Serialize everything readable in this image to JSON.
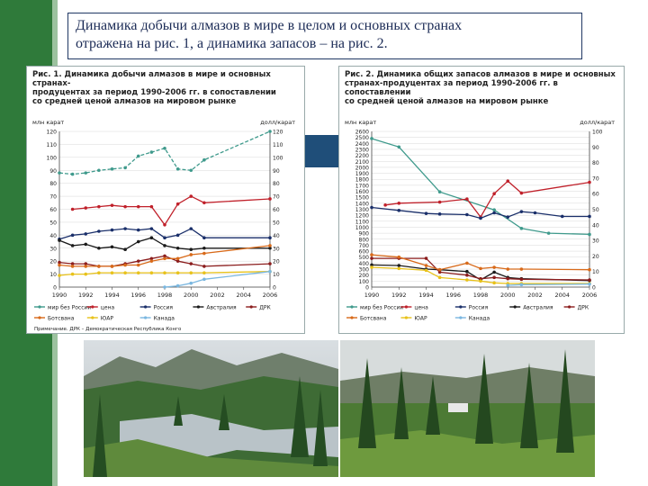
{
  "caption": {
    "line1": "Динамика добычи алмазов в мире в целом и основных странах",
    "line2": "отражена на рис. 1, а динамика запасов – на рис. 2."
  },
  "colors": {
    "green_bar": "#2f7a3a",
    "blue_block": "#1f4e79",
    "caption_border": "#203864"
  },
  "chart_data": [
    {
      "type": "line",
      "title": "Рис. 1. Динамика добычи алмазов в мире и основных странах-\nпродуцентах за период 1990-2006 гг. в сопоставлении\nсо средней ценой алмазов на мировом рынке",
      "ylabel_left": "млн карат",
      "ylabel_right": "долл/карат",
      "x": [
        1990,
        1991,
        1992,
        1993,
        1994,
        1995,
        1996,
        1997,
        1998,
        1999,
        2000,
        2001,
        2002,
        2003,
        2004,
        2005,
        2006
      ],
      "x_ticks": [
        "1990",
        "1992",
        "1994",
        "1996",
        "1998",
        "2000",
        "2002",
        "2004",
        "2006"
      ],
      "yleft_ticks": [
        "0",
        "10",
        "20",
        "30",
        "40",
        "50",
        "60",
        "70",
        "80",
        "90",
        "100",
        "110",
        "120"
      ],
      "yright_ticks": [
        "0",
        "10",
        "20",
        "30",
        "40",
        "50",
        "60",
        "70",
        "80",
        "90",
        "100",
        "110",
        "120"
      ],
      "ylim": [
        0,
        120
      ],
      "series": [
        {
          "name": "мир без России",
          "color": "#3f9a8c",
          "dash": "4,2",
          "values": [
            88,
            87,
            88,
            90,
            91,
            92,
            101,
            104,
            107,
            91,
            90,
            98,
            null,
            null,
            null,
            null,
            120
          ]
        },
        {
          "name": "цена",
          "color": "#c0202a",
          "values": [
            null,
            60,
            61,
            62,
            63,
            62,
            62,
            62,
            48,
            64,
            70,
            65,
            null,
            null,
            null,
            null,
            68
          ]
        },
        {
          "name": "Россия",
          "color": "#1a2f6a",
          "values": [
            37,
            40,
            41,
            43,
            44,
            45,
            44,
            45,
            38,
            40,
            45,
            38,
            null,
            null,
            null,
            null,
            38
          ]
        },
        {
          "name": "Австралия",
          "color": "#1a1a1a",
          "values": [
            36,
            32,
            33,
            30,
            31,
            29,
            35,
            38,
            32,
            30,
            29,
            30,
            null,
            null,
            null,
            null,
            30
          ]
        },
        {
          "name": "ДРК",
          "color": "#8b1d1d",
          "values": [
            19,
            18,
            18,
            16,
            16,
            18,
            20,
            22,
            24,
            20,
            18,
            16,
            null,
            null,
            null,
            null,
            18
          ]
        },
        {
          "name": "Ботсвана",
          "color": "#d86a1a",
          "values": [
            17,
            16,
            16,
            16,
            16,
            17,
            17,
            20,
            22,
            22,
            25,
            26,
            null,
            null,
            null,
            null,
            32
          ]
        },
        {
          "name": "ЮАР",
          "color": "#e8c21a",
          "values": [
            9,
            10,
            10,
            11,
            11,
            11,
            11,
            11,
            11,
            11,
            11,
            11,
            null,
            null,
            null,
            null,
            12
          ]
        },
        {
          "name": "Канада",
          "color": "#7ab7e0",
          "values": [
            null,
            null,
            null,
            null,
            null,
            null,
            null,
            null,
            0,
            1,
            3,
            6,
            null,
            null,
            null,
            null,
            12
          ]
        }
      ],
      "legend": [
        "мир без России",
        "цена",
        "Россия",
        "Австралия",
        "ДРК",
        "Ботсвана",
        "ЮАР",
        "Канада"
      ],
      "note": "Примечание. ДРК – Демократическая Республика Конго"
    },
    {
      "type": "line",
      "title": "Рис. 2. Динамика общих запасов алмазов в мире и основных\nстранах-продуцентах за период 1990-2006 гг. в сопоставлении\nсо средней ценой алмазов на мировом рынке",
      "ylabel_left": "млн карат",
      "ylabel_right": "долл/карат",
      "x": [
        1990,
        1991,
        1992,
        1993,
        1994,
        1995,
        1996,
        1997,
        1998,
        1999,
        2000,
        2001,
        2002,
        2003,
        2004,
        2005,
        2006
      ],
      "x_ticks": [
        "1990",
        "1992",
        "1994",
        "1996",
        "1998",
        "2000",
        "2002",
        "2004",
        "2006"
      ],
      "yleft_ticks": [
        "0",
        "100",
        "200",
        "300",
        "400",
        "500",
        "600",
        "700",
        "800",
        "900",
        "1000",
        "1100",
        "1200",
        "1300",
        "1400",
        "1500",
        "1600",
        "1700",
        "1800",
        "1900",
        "2000",
        "2100",
        "2200",
        "2300",
        "2400",
        "2500",
        "2600"
      ],
      "yright_ticks": [
        "0",
        "10",
        "20",
        "30",
        "40",
        "50",
        "60",
        "70",
        "80",
        "90",
        "100"
      ],
      "ylim": [
        0,
        2600
      ],
      "series": [
        {
          "name": "мир без России",
          "color": "#3f9a8c",
          "values": [
            2480,
            null,
            2340,
            null,
            null,
            1590,
            null,
            null,
            null,
            1290,
            null,
            980,
            null,
            900,
            null,
            null,
            880
          ]
        },
        {
          "name": "цена",
          "color": "#c0202a",
          "values": [
            null,
            1370,
            1400,
            null,
            null,
            1420,
            null,
            1470,
            1170,
            1560,
            1770,
            1570,
            null,
            null,
            null,
            null,
            1750
          ]
        },
        {
          "name": "Россия",
          "color": "#1a2f6a",
          "values": [
            1330,
            null,
            1280,
            null,
            1230,
            1220,
            null,
            1210,
            1150,
            1240,
            1170,
            1260,
            1240,
            null,
            1180,
            null,
            1180
          ]
        },
        {
          "name": "Австралия",
          "color": "#1a1a1a",
          "values": [
            370,
            null,
            360,
            null,
            300,
            290,
            null,
            260,
            120,
            250,
            160,
            140,
            null,
            null,
            null,
            null,
            110
          ]
        },
        {
          "name": "ДРК",
          "color": "#8b1d1d",
          "values": [
            480,
            null,
            480,
            null,
            480,
            250,
            null,
            200,
            140,
            160,
            140,
            130,
            null,
            null,
            null,
            null,
            120
          ]
        },
        {
          "name": "Ботсвана",
          "color": "#d86a1a",
          "values": [
            540,
            null,
            500,
            null,
            360,
            290,
            null,
            400,
            310,
            330,
            300,
            300,
            null,
            null,
            null,
            null,
            290
          ]
        },
        {
          "name": "ЮАР",
          "color": "#e8c21a",
          "values": [
            330,
            null,
            310,
            null,
            280,
            160,
            null,
            120,
            100,
            70,
            60,
            60,
            null,
            null,
            null,
            null,
            60
          ]
        },
        {
          "name": "Канада",
          "color": "#7ab7e0",
          "values": [
            null,
            null,
            null,
            null,
            null,
            null,
            null,
            null,
            null,
            null,
            30,
            40,
            null,
            null,
            null,
            null,
            50
          ]
        }
      ],
      "legend": [
        "мир без России",
        "цена",
        "Россия",
        "Австралия",
        "ДРК",
        "Ботсвана",
        "ЮАР",
        "Канада"
      ]
    }
  ]
}
